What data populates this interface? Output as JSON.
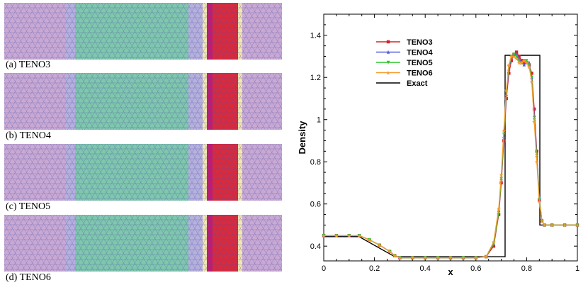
{
  "panels": [
    {
      "caption": "(a) TENO3"
    },
    {
      "caption": "(b) TENO4"
    },
    {
      "caption": "(c) TENO5"
    },
    {
      "caption": "(d) TENO6"
    }
  ],
  "colors": {
    "purple": "#c9a9d4",
    "lavender": "#b6b0dd",
    "green": "#7fc7ad",
    "cream": "#f5e6b0",
    "magenta": "#c21a72",
    "red": "#d92a3d",
    "mesh": "#4c53a8"
  },
  "chart_data": {
    "type": "line",
    "xlabel": "x",
    "ylabel": "Density",
    "xlim": [
      0,
      1
    ],
    "ylim": [
      0.33,
      1.5
    ],
    "xticks": [
      "0",
      "0.2",
      "0.4",
      "0.6",
      "0.8",
      "1"
    ],
    "yticks": [
      "0.4",
      "0.6",
      "0.8",
      "1",
      "1.2",
      "1.4"
    ],
    "legend_position": "top-left",
    "series": [
      {
        "name": "TENO3",
        "color": "#d8202a",
        "marker": "square",
        "x": [
          0,
          0.05,
          0.1,
          0.14,
          0.18,
          0.22,
          0.26,
          0.28,
          0.3,
          0.35,
          0.4,
          0.45,
          0.5,
          0.55,
          0.6,
          0.64,
          0.67,
          0.69,
          0.7,
          0.71,
          0.72,
          0.73,
          0.74,
          0.75,
          0.76,
          0.77,
          0.78,
          0.79,
          0.8,
          0.81,
          0.82,
          0.83,
          0.84,
          0.85,
          0.86,
          0.87,
          0.9,
          0.95,
          1.0
        ],
        "y": [
          0.45,
          0.45,
          0.45,
          0.45,
          0.43,
          0.405,
          0.375,
          0.355,
          0.345,
          0.345,
          0.345,
          0.345,
          0.345,
          0.345,
          0.345,
          0.35,
          0.4,
          0.55,
          0.7,
          0.9,
          1.1,
          1.22,
          1.28,
          1.31,
          1.32,
          1.3,
          1.28,
          1.27,
          1.27,
          1.26,
          1.22,
          1.05,
          0.85,
          0.62,
          0.52,
          0.5,
          0.5,
          0.5,
          0.5
        ]
      },
      {
        "name": "TENO4",
        "color": "#5a5de0",
        "marker": "triangle",
        "x": [
          0,
          0.05,
          0.1,
          0.14,
          0.18,
          0.22,
          0.26,
          0.28,
          0.3,
          0.35,
          0.4,
          0.45,
          0.5,
          0.55,
          0.6,
          0.64,
          0.67,
          0.69,
          0.7,
          0.71,
          0.72,
          0.73,
          0.74,
          0.75,
          0.76,
          0.77,
          0.78,
          0.79,
          0.8,
          0.81,
          0.82,
          0.83,
          0.84,
          0.85,
          0.86,
          0.87,
          0.9,
          0.95,
          1.0
        ],
        "y": [
          0.45,
          0.45,
          0.45,
          0.45,
          0.43,
          0.405,
          0.375,
          0.355,
          0.345,
          0.345,
          0.345,
          0.345,
          0.345,
          0.345,
          0.345,
          0.35,
          0.41,
          0.57,
          0.72,
          0.92,
          1.12,
          1.24,
          1.29,
          1.31,
          1.31,
          1.29,
          1.27,
          1.26,
          1.27,
          1.27,
          1.2,
          1.02,
          0.84,
          0.63,
          0.52,
          0.5,
          0.5,
          0.5,
          0.5
        ]
      },
      {
        "name": "TENO5",
        "color": "#2cc52c",
        "marker": "triangle-down",
        "x": [
          0,
          0.05,
          0.1,
          0.14,
          0.18,
          0.22,
          0.26,
          0.28,
          0.3,
          0.35,
          0.4,
          0.45,
          0.5,
          0.55,
          0.6,
          0.64,
          0.67,
          0.69,
          0.7,
          0.71,
          0.72,
          0.73,
          0.74,
          0.75,
          0.76,
          0.77,
          0.78,
          0.79,
          0.8,
          0.81,
          0.82,
          0.83,
          0.84,
          0.85,
          0.86,
          0.87,
          0.9,
          0.95,
          1.0
        ],
        "y": [
          0.45,
          0.45,
          0.45,
          0.45,
          0.43,
          0.405,
          0.375,
          0.355,
          0.345,
          0.345,
          0.345,
          0.345,
          0.345,
          0.345,
          0.345,
          0.35,
          0.41,
          0.56,
          0.72,
          0.93,
          1.13,
          1.25,
          1.3,
          1.31,
          1.3,
          1.28,
          1.27,
          1.28,
          1.28,
          1.26,
          1.2,
          1.0,
          0.82,
          0.62,
          0.52,
          0.5,
          0.5,
          0.5,
          0.5
        ]
      },
      {
        "name": "TENO6",
        "color": "#f39a2b",
        "marker": "star",
        "x": [
          0,
          0.05,
          0.1,
          0.14,
          0.18,
          0.22,
          0.26,
          0.28,
          0.3,
          0.35,
          0.4,
          0.45,
          0.5,
          0.55,
          0.6,
          0.64,
          0.67,
          0.69,
          0.7,
          0.71,
          0.72,
          0.73,
          0.74,
          0.75,
          0.76,
          0.77,
          0.78,
          0.79,
          0.8,
          0.81,
          0.82,
          0.83,
          0.84,
          0.85,
          0.86,
          0.87,
          0.9,
          0.95,
          1.0
        ],
        "y": [
          0.45,
          0.45,
          0.45,
          0.45,
          0.43,
          0.405,
          0.375,
          0.355,
          0.345,
          0.345,
          0.345,
          0.345,
          0.345,
          0.345,
          0.345,
          0.35,
          0.42,
          0.58,
          0.74,
          0.95,
          1.14,
          1.26,
          1.3,
          1.3,
          1.29,
          1.27,
          1.27,
          1.28,
          1.27,
          1.25,
          1.18,
          0.99,
          0.8,
          0.61,
          0.52,
          0.5,
          0.5,
          0.5,
          0.5
        ]
      },
      {
        "name": "Exact",
        "color": "#000000",
        "marker": "none",
        "x": [
          0,
          0.139,
          0.28,
          0.3,
          0.715,
          0.715,
          0.852,
          0.852,
          1.0
        ],
        "y": [
          0.445,
          0.445,
          0.35,
          0.35,
          0.35,
          1.305,
          1.305,
          0.5,
          0.5
        ]
      }
    ]
  }
}
